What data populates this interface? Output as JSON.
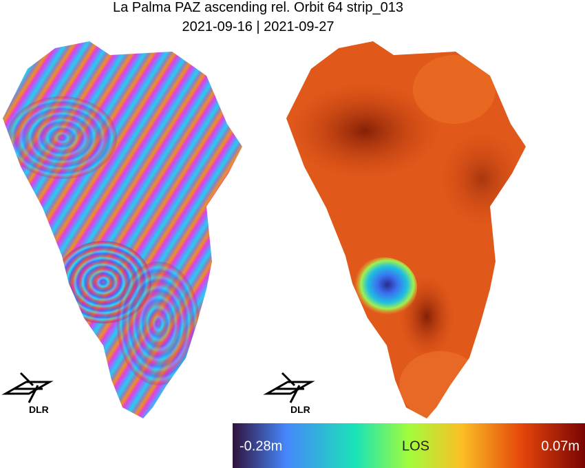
{
  "header": {
    "title": "La Palma PAZ ascending rel. Orbit 64 strip_013",
    "subtitle": "2021-09-16 | 2021-09-27"
  },
  "logos": [
    {
      "text": "DLR"
    },
    {
      "text": "DLR"
    }
  ],
  "colorbar": {
    "min_label": "-0.28m",
    "label": "LOS",
    "max_label": "0.07m"
  }
}
